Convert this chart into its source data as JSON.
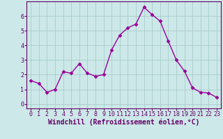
{
  "x": [
    0,
    1,
    2,
    3,
    4,
    5,
    6,
    7,
    8,
    9,
    10,
    11,
    12,
    13,
    14,
    15,
    16,
    17,
    18,
    19,
    20,
    21,
    22,
    23
  ],
  "y": [
    1.6,
    1.4,
    0.8,
    1.0,
    2.2,
    2.1,
    2.75,
    2.1,
    1.9,
    2.0,
    3.7,
    4.7,
    5.2,
    5.45,
    6.6,
    6.1,
    5.65,
    4.3,
    3.0,
    2.25,
    1.1,
    0.8,
    0.75,
    0.45
  ],
  "line_color": "#990099",
  "marker": "D",
  "marker_size": 2.5,
  "xlabel": "Windchill (Refroidissement éolien,°C)",
  "xlim": [
    -0.5,
    23.5
  ],
  "ylim": [
    -0.3,
    7.0
  ],
  "yticks": [
    0,
    1,
    2,
    3,
    4,
    5,
    6
  ],
  "xticks": [
    0,
    1,
    2,
    3,
    4,
    5,
    6,
    7,
    8,
    9,
    10,
    11,
    12,
    13,
    14,
    15,
    16,
    17,
    18,
    19,
    20,
    21,
    22,
    23
  ],
  "bg_color": "#cce8e8",
  "grid_color": "#aacccc",
  "axis_color": "#660066",
  "tick_color": "#660066",
  "label_color": "#660066",
  "xlabel_fontsize": 7,
  "tick_fontsize": 6,
  "line_width": 1.0
}
